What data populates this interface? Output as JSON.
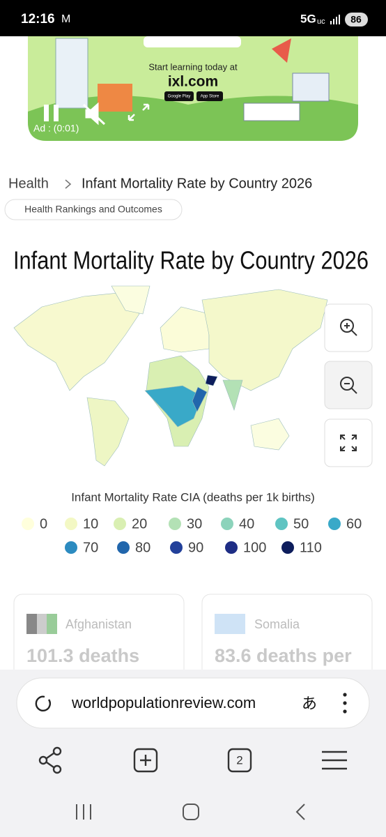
{
  "status_bar": {
    "time": "12:16",
    "network": "5G",
    "network_sub": "uc",
    "battery": "86"
  },
  "ad": {
    "tagline": "Start learning today at",
    "site": "ixl.com",
    "badges": [
      "Google Play",
      "App Store"
    ],
    "timer": "Ad : (0:01)"
  },
  "breadcrumb": {
    "parent": "Health",
    "current": "Infant Mortality Rate by Country 2026"
  },
  "tag": "Health Rankings and Outcomes",
  "title": "Infant Mortality Rate by Country 2026",
  "legend": {
    "title": "Infant Mortality Rate CIA (deaths per 1k births)",
    "items": [
      {
        "label": "0",
        "color": "#ffffdc"
      },
      {
        "label": "10",
        "color": "#f3f8c4"
      },
      {
        "label": "20",
        "color": "#d9efb2"
      },
      {
        "label": "30",
        "color": "#b3e1b5"
      },
      {
        "label": "40",
        "color": "#8cd3bb"
      },
      {
        "label": "50",
        "color": "#5fc4c2"
      },
      {
        "label": "60",
        "color": "#39a9c8"
      },
      {
        "label": "70",
        "color": "#2c8bc0"
      },
      {
        "label": "80",
        "color": "#2166ac"
      },
      {
        "label": "90",
        "color": "#22409a"
      },
      {
        "label": "100",
        "color": "#1e2d85"
      },
      {
        "label": "110",
        "color": "#0d1d5c"
      }
    ]
  },
  "cards": [
    {
      "country": "Afghanistan",
      "value": "101.3 deaths"
    },
    {
      "country": "Somalia",
      "value": "83.6 deaths per"
    }
  ],
  "browser": {
    "url": "worldpopulationreview.com",
    "translate": "あ",
    "tab_count": "2"
  }
}
